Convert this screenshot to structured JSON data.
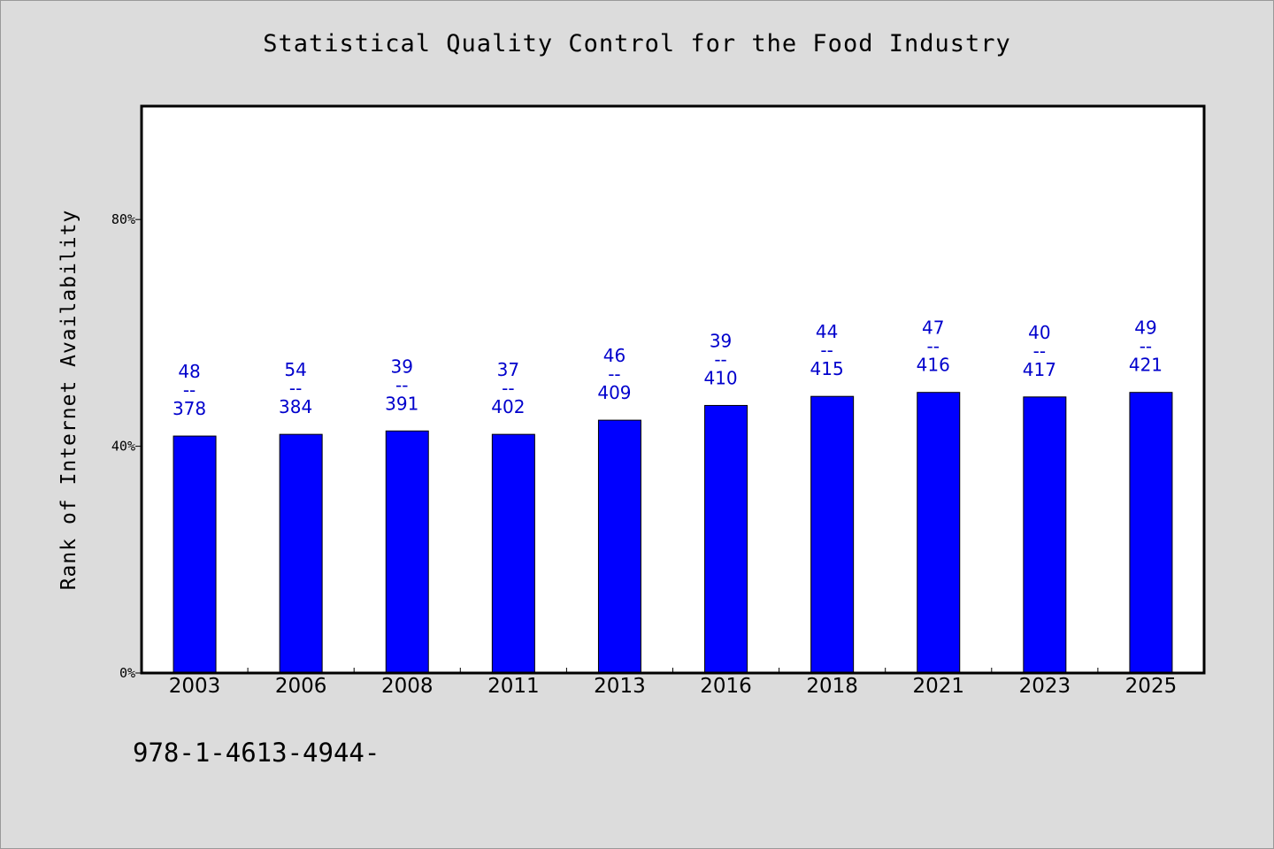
{
  "chart_data": {
    "type": "bar",
    "title": "Statistical Quality Control for the Food Industry",
    "xlabel": "",
    "ylabel": "Rank of Internet Availability",
    "categories": [
      "2003",
      "2006",
      "2008",
      "2011",
      "2013",
      "2016",
      "2018",
      "2021",
      "2023",
      "2025"
    ],
    "values": [
      41.8,
      42.1,
      42.7,
      42.1,
      44.6,
      47.2,
      48.8,
      49.5,
      48.7,
      49.5
    ],
    "data_labels": [
      {
        "top": "48",
        "sep": "--",
        "bottom": "378"
      },
      {
        "top": "54",
        "sep": "--",
        "bottom": "384"
      },
      {
        "top": "39",
        "sep": "--",
        "bottom": "391"
      },
      {
        "top": "37",
        "sep": "--",
        "bottom": "402"
      },
      {
        "top": "46",
        "sep": "--",
        "bottom": "409"
      },
      {
        "top": "39",
        "sep": "--",
        "bottom": "410"
      },
      {
        "top": "44",
        "sep": "--",
        "bottom": "415"
      },
      {
        "top": "47",
        "sep": "--",
        "bottom": "416"
      },
      {
        "top": "40",
        "sep": "--",
        "bottom": "417"
      },
      {
        "top": "49",
        "sep": "--",
        "bottom": "421"
      }
    ],
    "yticks": [
      0,
      40,
      80
    ],
    "ytick_labels": [
      "0%",
      "40%",
      "80%"
    ],
    "ylim": [
      0,
      100
    ],
    "grid": false,
    "bar_color": "#0000ff",
    "label_color": "#0000cc"
  },
  "footer": {
    "isbn": "978-1-4613-4944-"
  }
}
